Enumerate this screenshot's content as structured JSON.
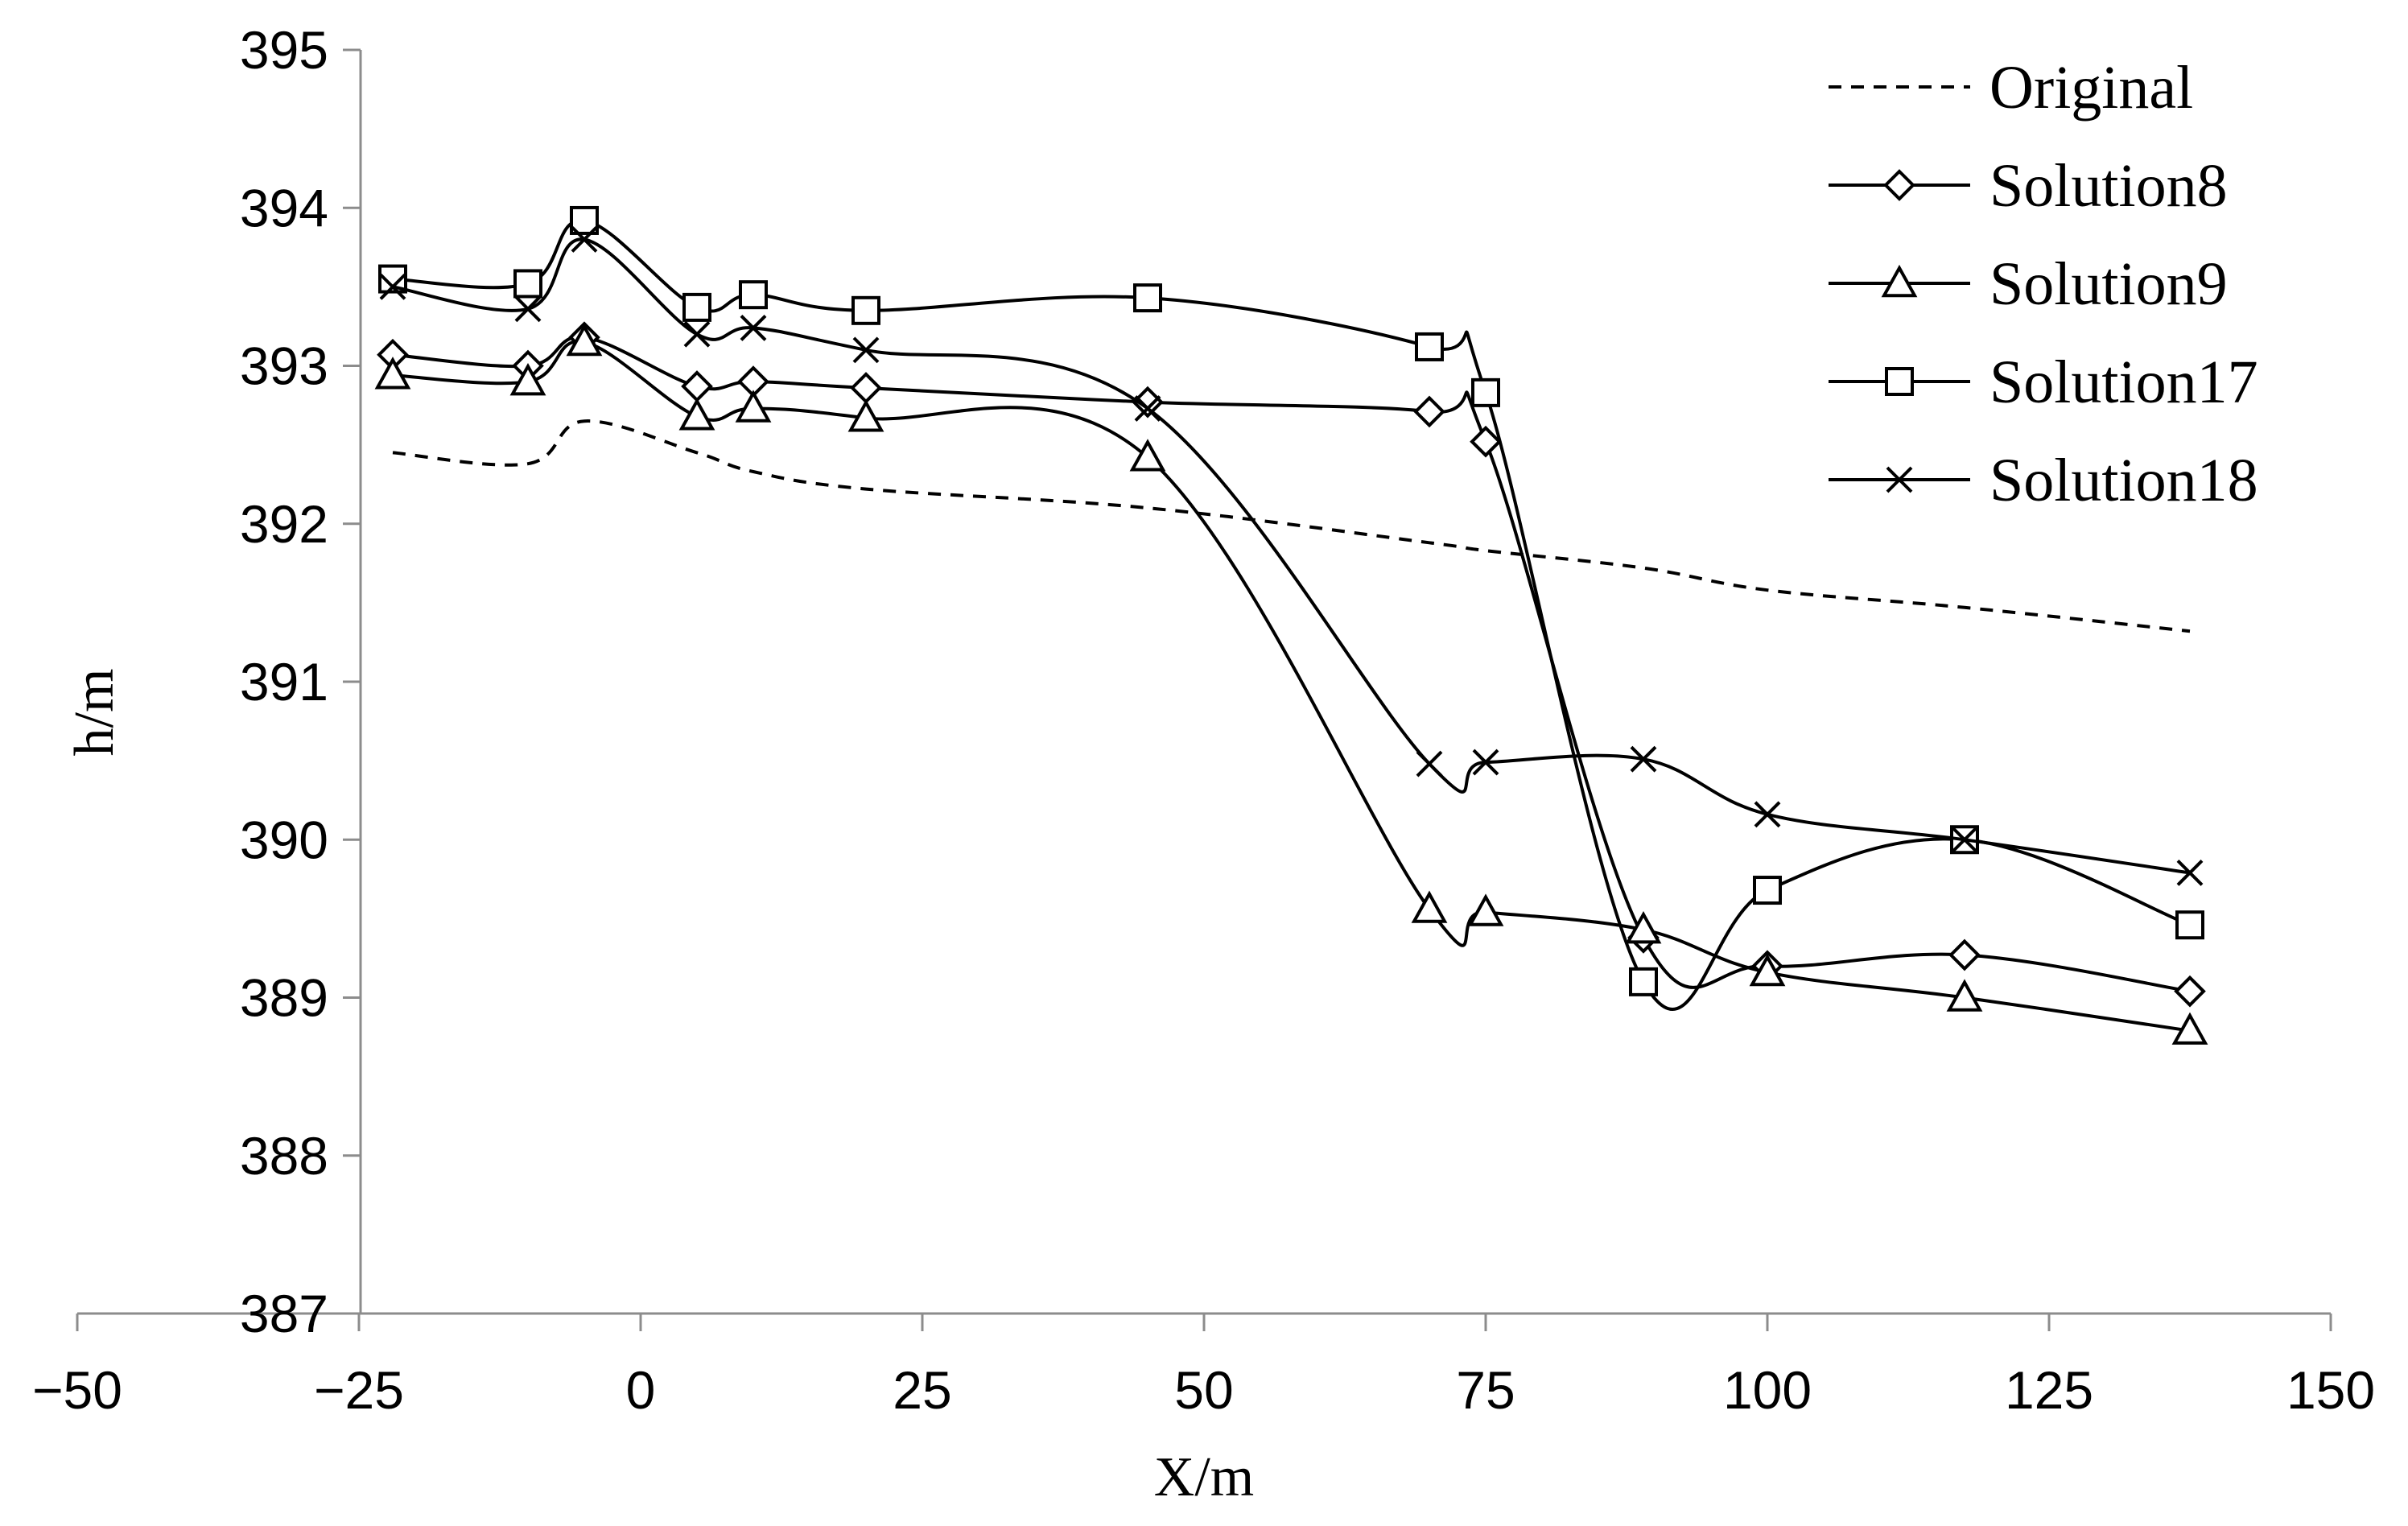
{
  "chart_data": {
    "type": "line",
    "title": "",
    "xlabel": "X/m",
    "ylabel": "h/m",
    "xlim": [
      -50,
      150
    ],
    "ylim": [
      387,
      395
    ],
    "x_ticks": [
      -50,
      -25,
      0,
      25,
      50,
      75,
      100,
      125,
      150
    ],
    "x_tick_labels": [
      "−50",
      "−25",
      "0",
      "25",
      "50",
      "75",
      "100",
      "125",
      "150"
    ],
    "y_ticks": [
      387,
      388,
      389,
      390,
      391,
      392,
      393,
      394,
      395
    ],
    "y_tick_labels": [
      "387",
      "388",
      "389",
      "390",
      "391",
      "392",
      "393",
      "394",
      "395"
    ],
    "grid": false,
    "legend_position": "top-right",
    "colors": {
      "line": "#000000",
      "axis": "#8c8c8c",
      "background": "#ffffff"
    },
    "series": [
      {
        "name": "Original",
        "style": "dashed",
        "marker": "none",
        "x": [
          -22,
          -10,
          -5,
          5,
          10,
          20,
          45,
          70,
          75,
          89,
          100,
          117.5,
          137.5
        ],
        "y": [
          392.45,
          392.38,
          392.65,
          392.45,
          392.33,
          392.22,
          392.1,
          391.88,
          391.83,
          391.72,
          391.58,
          391.47,
          391.32
        ]
      },
      {
        "name": "Solution8",
        "style": "solid",
        "marker": "diamond",
        "x": [
          -22,
          -10,
          -5,
          5,
          10,
          20,
          45,
          70,
          75,
          89,
          100,
          117.5,
          137.5
        ],
        "y": [
          393.07,
          393.0,
          393.18,
          392.87,
          392.9,
          392.86,
          392.77,
          392.71,
          392.52,
          389.38,
          389.2,
          389.27,
          389.04
        ]
      },
      {
        "name": "Solution9",
        "style": "solid",
        "marker": "triangle",
        "x": [
          -22,
          -10,
          -5,
          5,
          10,
          20,
          45,
          70,
          75,
          89,
          100,
          117.5,
          137.5
        ],
        "y": [
          392.94,
          392.9,
          393.15,
          392.68,
          392.73,
          392.67,
          392.42,
          389.56,
          389.54,
          389.43,
          389.16,
          389.0,
          388.79
        ]
      },
      {
        "name": "Solution17",
        "style": "solid",
        "marker": "square",
        "x": [
          -22,
          -10,
          -5,
          5,
          10,
          20,
          45,
          70,
          75,
          89,
          100,
          117.5,
          137.5
        ],
        "y": [
          393.55,
          393.52,
          393.92,
          393.37,
          393.45,
          393.35,
          393.43,
          393.12,
          392.83,
          389.1,
          389.68,
          390.0,
          389.46
        ]
      },
      {
        "name": "Solution18",
        "style": "solid",
        "marker": "cross",
        "x": [
          -22,
          -10,
          -5,
          5,
          10,
          20,
          45,
          70,
          75,
          89,
          100,
          117.5,
          137.5
        ],
        "y": [
          393.5,
          393.36,
          393.8,
          393.2,
          393.24,
          393.1,
          392.73,
          390.48,
          390.49,
          390.51,
          390.16,
          390.0,
          389.79
        ]
      }
    ]
  }
}
